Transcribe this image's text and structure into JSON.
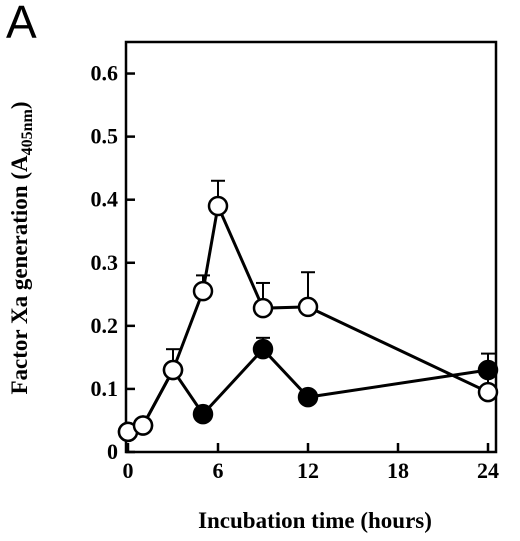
{
  "panel_label": "A",
  "chart_data": {
    "type": "line",
    "xlabel": "Incubation time (hours)",
    "ylabel": {
      "main": "Factor Xa generation (A",
      "sub": "405nm",
      "end": ")"
    },
    "xlim": [
      0,
      24
    ],
    "ylim": [
      0,
      0.65
    ],
    "x_ticks": [
      0,
      6,
      12,
      18,
      24
    ],
    "x_tick_labels": [
      "0",
      "6",
      "12",
      "18",
      "24"
    ],
    "y_ticks": [
      0,
      0.1,
      0.2,
      0.3,
      0.4,
      0.5,
      0.6
    ],
    "y_tick_labels": [
      "0",
      "0.1",
      "0.2",
      "0.3",
      "0.4",
      "0.5",
      "0.6"
    ],
    "grid": false,
    "series": [
      {
        "marker": "filled-circle",
        "x": [
          0,
          1,
          3,
          5,
          9,
          12,
          24
        ],
        "y": [
          0.032,
          0.042,
          0.13,
          0.06,
          0.163,
          0.087,
          0.13
        ],
        "error": [
          0,
          0,
          0,
          0,
          0.018,
          0,
          0.026
        ]
      },
      {
        "marker": "open-circle",
        "x": [
          0,
          1,
          3,
          5,
          6,
          9,
          12,
          24
        ],
        "y": [
          0.032,
          0.042,
          0.13,
          0.255,
          0.39,
          0.228,
          0.23,
          0.095
        ],
        "error": [
          0,
          0,
          0.033,
          0.025,
          0.04,
          0.04,
          0.055,
          0.045
        ]
      }
    ]
  }
}
